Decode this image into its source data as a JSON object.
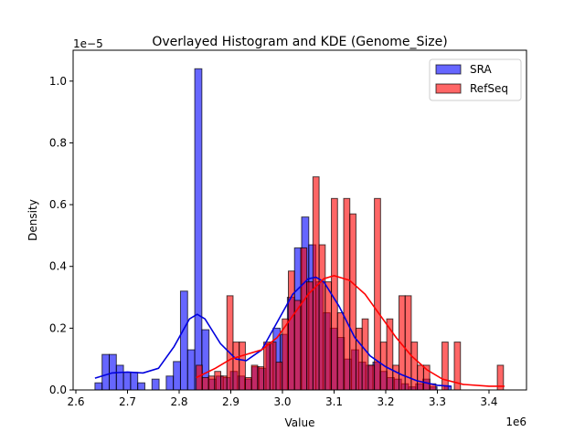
{
  "chart_data": {
    "type": "bar",
    "title": "Overlayed Histogram and KDE (Genome_Size)",
    "xlabel": "Value",
    "ylabel": "Density",
    "x_offset_label": "1e6",
    "y_offset_label": "1e−5",
    "xlim": [
      2.5947,
      3.4726
    ],
    "ylim": [
      0,
      1.1
    ],
    "xticks": [
      2.6,
      2.7,
      2.8,
      2.9,
      3.0,
      3.1,
      3.2,
      3.3,
      3.4
    ],
    "xtick_labels": [
      "2.6",
      "2.7",
      "2.8",
      "2.9",
      "3.0",
      "3.1",
      "3.2",
      "3.3",
      "3.4"
    ],
    "yticks": [
      0,
      0.2,
      0.4,
      0.6,
      0.8,
      1.0
    ],
    "ytick_labels": [
      "0.0",
      "0.2",
      "0.4",
      "0.6",
      "0.8",
      "1.0"
    ],
    "legend_position": "top-right",
    "series": [
      {
        "name": "SRA",
        "color": "#0000ff",
        "kde_color": "#0000dd",
        "bin_start": 2.637,
        "bin_width": 0.0138,
        "values": [
          0.023,
          0.115,
          0.115,
          0.08,
          0.057,
          0.057,
          0.023,
          0,
          0.035,
          0,
          0.045,
          0.092,
          0.32,
          0.13,
          1.04,
          0.195,
          0.035,
          0.045,
          0.04,
          0.06,
          0.045,
          0.035,
          0.075,
          0.07,
          0.15,
          0.2,
          0.18,
          0.3,
          0.46,
          0.56,
          0.47,
          0.35,
          0.25,
          0.2,
          0.17,
          0.1,
          0.13,
          0.09,
          0.08,
          0.09,
          0.06,
          0.04,
          0.035,
          0.02,
          0.01,
          0.02,
          0.035,
          0.01,
          0,
          0.012
        ],
        "kde": [
          [
            2.637,
            0.038
          ],
          [
            2.67,
            0.055
          ],
          [
            2.7,
            0.058
          ],
          [
            2.73,
            0.055
          ],
          [
            2.76,
            0.07
          ],
          [
            2.79,
            0.14
          ],
          [
            2.82,
            0.23
          ],
          [
            2.835,
            0.245
          ],
          [
            2.85,
            0.23
          ],
          [
            2.88,
            0.15
          ],
          [
            2.91,
            0.1
          ],
          [
            2.93,
            0.095
          ],
          [
            2.96,
            0.13
          ],
          [
            2.99,
            0.22
          ],
          [
            3.02,
            0.31
          ],
          [
            3.05,
            0.36
          ],
          [
            3.065,
            0.365
          ],
          [
            3.08,
            0.35
          ],
          [
            3.11,
            0.27
          ],
          [
            3.14,
            0.17
          ],
          [
            3.17,
            0.11
          ],
          [
            3.2,
            0.075
          ],
          [
            3.23,
            0.05
          ],
          [
            3.26,
            0.03
          ],
          [
            3.3,
            0.015
          ],
          [
            3.327,
            0.012
          ]
        ]
      },
      {
        "name": "RefSeq",
        "color": "#ff0000",
        "kde_color": "#ff0000",
        "bin_start": 2.833,
        "bin_width": 0.0119,
        "values": [
          0.08,
          0.04,
          0.045,
          0.06,
          0.045,
          0.305,
          0.155,
          0.155,
          0.04,
          0.08,
          0.075,
          0.155,
          0.155,
          0.09,
          0.23,
          0.385,
          0.29,
          0.46,
          0.35,
          0.69,
          0.47,
          0.35,
          0.62,
          0.25,
          0.62,
          0.57,
          0.2,
          0.23,
          0.08,
          0.62,
          0.155,
          0.23,
          0.08,
          0.305,
          0.305,
          0.155,
          0.08,
          0.08,
          0.02,
          0,
          0.155,
          0,
          0.155,
          0,
          0,
          0,
          0,
          0,
          0,
          0.08
        ],
        "kde": [
          [
            2.833,
            0.04
          ],
          [
            2.87,
            0.07
          ],
          [
            2.9,
            0.1
          ],
          [
            2.93,
            0.115
          ],
          [
            2.96,
            0.13
          ],
          [
            2.99,
            0.17
          ],
          [
            3.02,
            0.24
          ],
          [
            3.05,
            0.31
          ],
          [
            3.08,
            0.36
          ],
          [
            3.1,
            0.37
          ],
          [
            3.13,
            0.355
          ],
          [
            3.16,
            0.31
          ],
          [
            3.19,
            0.24
          ],
          [
            3.22,
            0.17
          ],
          [
            3.25,
            0.11
          ],
          [
            3.28,
            0.065
          ],
          [
            3.31,
            0.035
          ],
          [
            3.35,
            0.018
          ],
          [
            3.4,
            0.012
          ],
          [
            3.43,
            0.012
          ]
        ]
      }
    ]
  }
}
